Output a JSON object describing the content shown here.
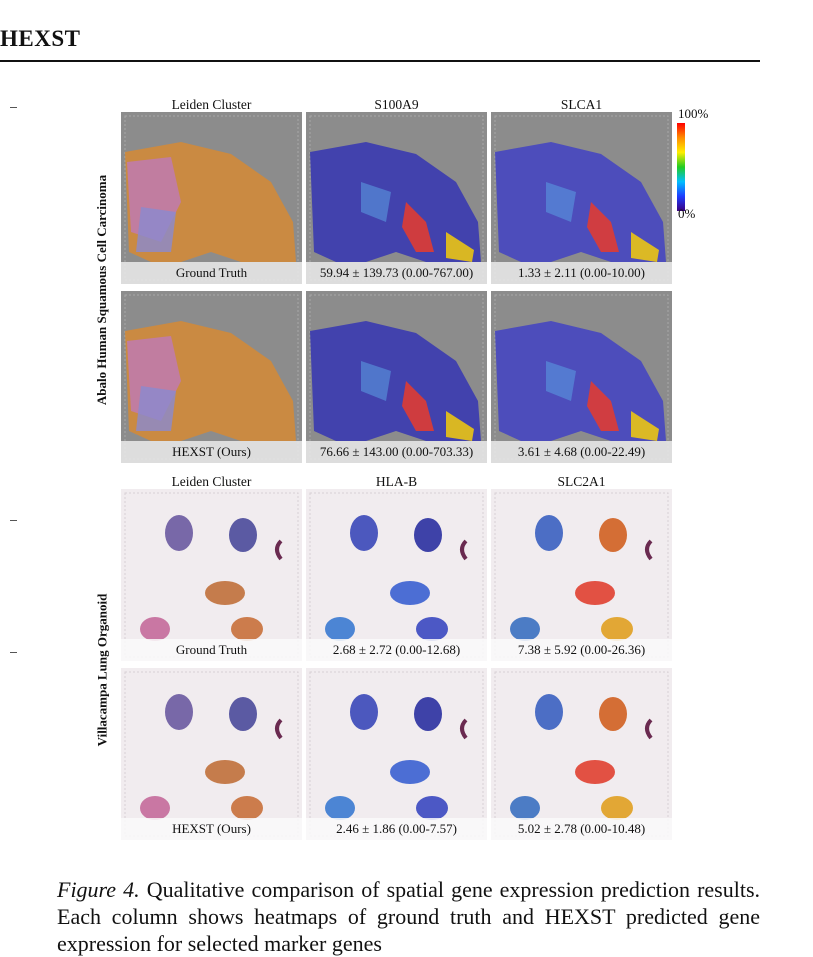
{
  "header": {
    "title": "HEXST"
  },
  "figure": {
    "sections": [
      {
        "row_label": "Abalo Human Squamous Cell Carcinoma",
        "columns": [
          "Leiden Cluster",
          "S100A9",
          "SLCA1"
        ],
        "rows": [
          [
            "Ground Truth",
            "59.94 ± 139.73 (0.00-767.00)",
            "1.33 ± 2.11 (0.00-10.00)"
          ],
          [
            "HEXST (Ours)",
            "76.66 ± 143.00 (0.00-703.33)",
            "3.61 ± 4.68 (0.00-22.49)"
          ]
        ]
      },
      {
        "row_label": "Villacampa Lung Organoid",
        "columns": [
          "Leiden Cluster",
          "HLA-B",
          "SLC2A1"
        ],
        "rows": [
          [
            "Ground Truth",
            "2.68 ± 2.72 (0.00-12.68)",
            "7.38 ± 5.92 (0.00-26.36)"
          ],
          [
            "HEXST (Ours)",
            "2.46 ± 1.86 (0.00-7.57)",
            "5.02 ± 2.78 (0.00-10.48)"
          ]
        ]
      }
    ],
    "colorbar": {
      "max_label": "100%",
      "min_label": "0%"
    }
  },
  "caption": {
    "label": "Figure 4.",
    "text": "Qualitative comparison of spatial gene expression prediction results. Each column shows heatmaps of ground truth and HEXST predicted gene expression for selected marker genes"
  }
}
